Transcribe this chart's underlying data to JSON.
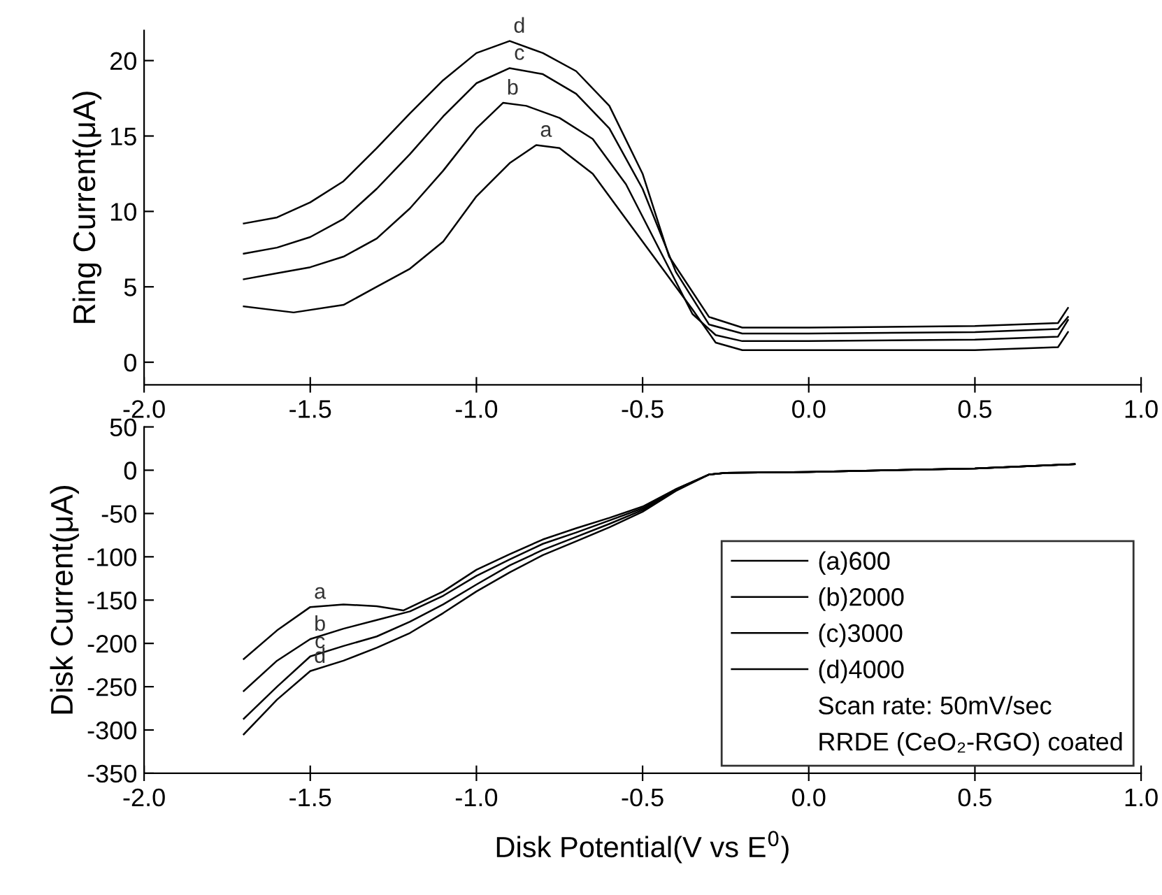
{
  "chart_data": [
    {
      "type": "line",
      "ylabel": "Ring Current(μA)",
      "xlim": [
        -2.0,
        1.0
      ],
      "xticks": [
        {
          "value": -2.0,
          "label": "-2.0"
        },
        {
          "value": -1.5,
          "label": "-1.5"
        },
        {
          "value": -1.0,
          "label": "-1.0"
        },
        {
          "value": -0.5,
          "label": "-0.5"
        },
        {
          "value": 0.0,
          "label": "0.0"
        },
        {
          "value": 0.5,
          "label": "0.5"
        },
        {
          "value": 1.0,
          "label": "1.0"
        }
      ],
      "ylim": [
        -1.5,
        22
      ],
      "yticks": [
        0,
        5,
        10,
        15,
        20
      ],
      "grid": false,
      "legend": false,
      "marker": "none",
      "line_style": "solid",
      "series": [
        {
          "color": "#000000",
          "x": [
            -1.7,
            -1.55,
            -1.4,
            -1.3,
            -1.2,
            -1.1,
            -1.0,
            -0.9,
            -0.82,
            -0.75,
            -0.65,
            -0.55,
            -0.45,
            -0.35,
            -0.28,
            -0.2,
            0.0,
            0.5,
            0.75,
            0.78
          ],
          "values": [
            3.7,
            3.3,
            3.8,
            5.0,
            6.2,
            8.0,
            11.0,
            13.2,
            14.4,
            14.2,
            12.5,
            9.5,
            6.5,
            3.5,
            1.3,
            0.8,
            0.8,
            0.8,
            1.0,
            2.0
          ]
        },
        {
          "color": "#000000",
          "x": [
            -1.7,
            -1.6,
            -1.5,
            -1.4,
            -1.3,
            -1.2,
            -1.1,
            -1.0,
            -0.92,
            -0.85,
            -0.75,
            -0.65,
            -0.55,
            -0.45,
            -0.35,
            -0.28,
            -0.2,
            0.0,
            0.5,
            0.75,
            0.78
          ],
          "values": [
            5.5,
            5.9,
            6.3,
            7.0,
            8.2,
            10.2,
            12.7,
            15.5,
            17.2,
            17.0,
            16.2,
            14.8,
            11.8,
            7.5,
            3.2,
            1.8,
            1.4,
            1.4,
            1.5,
            1.7,
            2.8
          ]
        },
        {
          "color": "#000000",
          "x": [
            -1.7,
            -1.6,
            -1.5,
            -1.4,
            -1.3,
            -1.2,
            -1.1,
            -1.0,
            -0.9,
            -0.8,
            -0.7,
            -0.6,
            -0.5,
            -0.4,
            -0.3,
            -0.2,
            0.0,
            0.5,
            0.75,
            0.78
          ],
          "values": [
            7.2,
            7.6,
            8.3,
            9.5,
            11.5,
            13.8,
            16.3,
            18.5,
            19.5,
            19.1,
            17.8,
            15.5,
            11.5,
            6.0,
            2.5,
            1.9,
            1.9,
            2.0,
            2.2,
            3.0
          ]
        },
        {
          "color": "#000000",
          "x": [
            -1.7,
            -1.6,
            -1.5,
            -1.4,
            -1.3,
            -1.2,
            -1.1,
            -1.0,
            -0.9,
            -0.8,
            -0.7,
            -0.6,
            -0.5,
            -0.42,
            -0.3,
            -0.2,
            0.0,
            0.5,
            0.75,
            0.78
          ],
          "values": [
            9.2,
            9.6,
            10.6,
            12.0,
            14.2,
            16.5,
            18.7,
            20.5,
            21.3,
            20.5,
            19.3,
            17.0,
            12.5,
            7.0,
            3.0,
            2.3,
            2.3,
            2.4,
            2.6,
            3.6
          ]
        }
      ],
      "annotations": [
        {
          "text": "a",
          "x": -0.82,
          "y": 14.4
        },
        {
          "text": "b",
          "x": -0.92,
          "y": 17.2
        },
        {
          "text": "c",
          "x": -0.9,
          "y": 19.5
        },
        {
          "text": "d",
          "x": -0.9,
          "y": 21.3
        }
      ]
    },
    {
      "type": "line",
      "xlabel": "Disk Potential(V vs E$^{0}$)",
      "ylabel": "Disk Current(μA)",
      "xlim": [
        -2.0,
        1.0
      ],
      "xticks": [
        {
          "value": -2.0,
          "label": "-2.0"
        },
        {
          "value": -1.5,
          "label": "-1.5"
        },
        {
          "value": -1.0,
          "label": "-1.0"
        },
        {
          "value": -0.5,
          "label": "-0.5"
        },
        {
          "value": 0.0,
          "label": "0.0"
        },
        {
          "value": 0.5,
          "label": "0.5"
        },
        {
          "value": 1.0,
          "label": "1.0"
        }
      ],
      "ylim": [
        -350,
        50
      ],
      "yticks": [
        -350,
        -300,
        -250,
        -200,
        -150,
        -100,
        -50,
        0,
        50
      ],
      "grid": false,
      "legend": "lower right",
      "marker": "none",
      "line_style": "solid",
      "series": [
        {
          "name": "(a)600",
          "color": "#000000",
          "x": [
            -1.7,
            -1.6,
            -1.5,
            -1.4,
            -1.3,
            -1.22,
            -1.1,
            -1.0,
            -0.9,
            -0.8,
            -0.7,
            -0.6,
            -0.5,
            -0.4,
            -0.3,
            -0.25,
            0.0,
            0.5,
            0.8
          ],
          "values": [
            -218,
            -185,
            -158,
            -155,
            -157,
            -162,
            -140,
            -115,
            -97,
            -80,
            -67,
            -55,
            -42,
            -22,
            -5,
            -3,
            -2,
            2,
            7
          ]
        },
        {
          "name": "(b)2000",
          "color": "#000000",
          "x": [
            -1.7,
            -1.6,
            -1.5,
            -1.4,
            -1.3,
            -1.2,
            -1.1,
            -1.0,
            -0.9,
            -0.8,
            -0.7,
            -0.6,
            -0.5,
            -0.4,
            -0.3,
            -0.25,
            0.0,
            0.5,
            0.8
          ],
          "values": [
            -255,
            -220,
            -195,
            -183,
            -173,
            -163,
            -145,
            -122,
            -103,
            -85,
            -72,
            -58,
            -44,
            -22,
            -5,
            -3,
            -2,
            2,
            7
          ]
        },
        {
          "name": "(c)3000",
          "color": "#000000",
          "x": [
            -1.7,
            -1.6,
            -1.5,
            -1.4,
            -1.3,
            -1.2,
            -1.1,
            -1.0,
            -0.9,
            -0.8,
            -0.7,
            -0.6,
            -0.5,
            -0.4,
            -0.3,
            -0.25,
            0.0,
            0.5,
            0.8
          ],
          "values": [
            -287,
            -250,
            -215,
            -203,
            -192,
            -175,
            -155,
            -132,
            -110,
            -92,
            -77,
            -62,
            -46,
            -23,
            -5,
            -3,
            -2,
            2,
            7
          ]
        },
        {
          "name": "(d)4000",
          "color": "#000000",
          "x": [
            -1.7,
            -1.6,
            -1.5,
            -1.4,
            -1.3,
            -1.2,
            -1.1,
            -1.0,
            -0.9,
            -0.8,
            -0.7,
            -0.6,
            -0.5,
            -0.4,
            -0.3,
            -0.25,
            0.0,
            0.5,
            0.8
          ],
          "values": [
            -305,
            -265,
            -232,
            -220,
            -205,
            -188,
            -165,
            -140,
            -118,
            -98,
            -82,
            -66,
            -48,
            -24,
            -5,
            -3,
            -2,
            2,
            7
          ]
        }
      ],
      "annotations": [
        {
          "text": "a",
          "x": -1.5,
          "y": -158
        },
        {
          "text": "b",
          "x": -1.5,
          "y": -195
        },
        {
          "text": "c",
          "x": -1.5,
          "y": -215
        },
        {
          "text": "d",
          "x": -1.5,
          "y": -232
        },
        "Scan rate: 50mV/sec",
        "RRDE (CeO₂-RGO) coated"
      ]
    }
  ]
}
